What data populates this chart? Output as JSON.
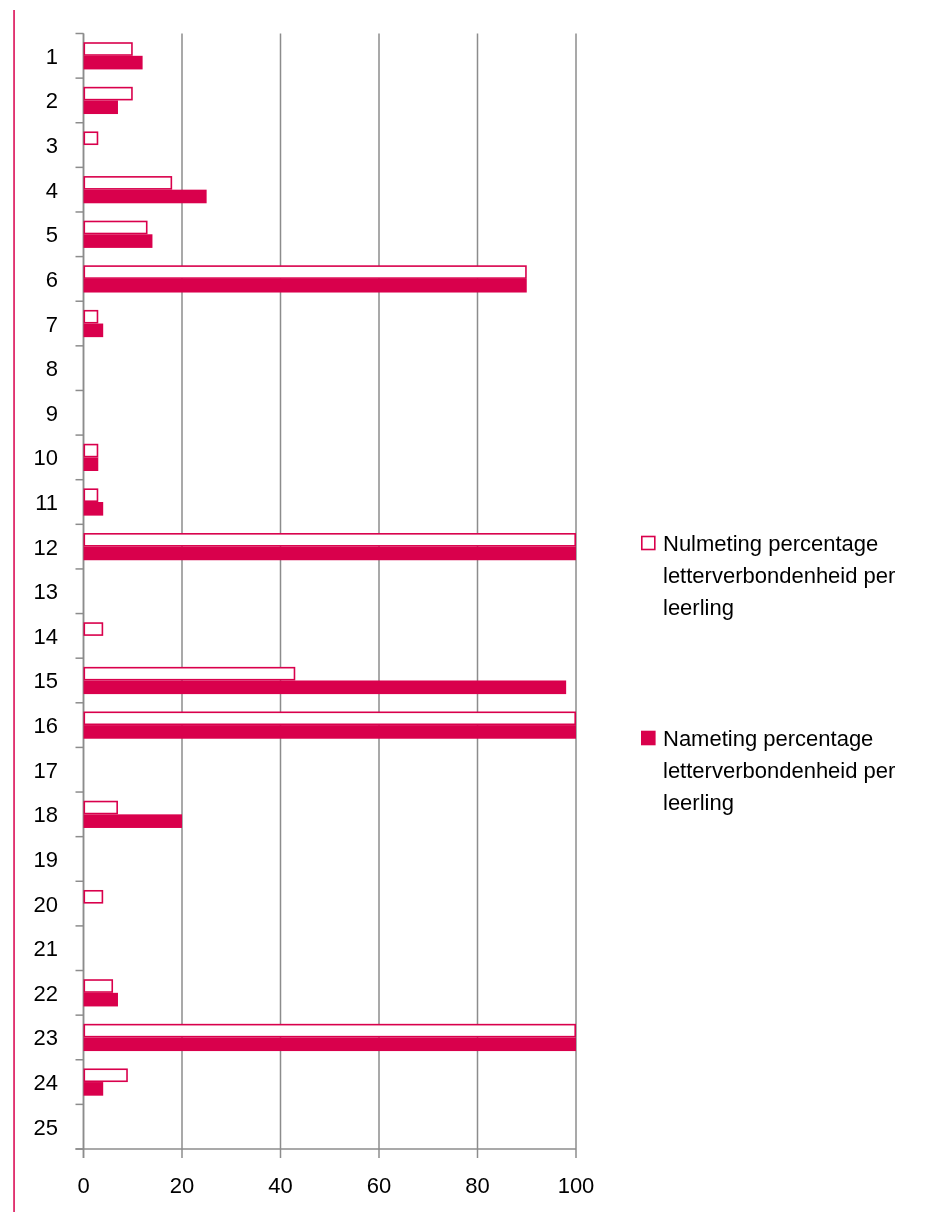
{
  "chart_data": {
    "type": "bar",
    "orientation": "horizontal",
    "categories": [
      "1",
      "2",
      "3",
      "4",
      "5",
      "6",
      "7",
      "8",
      "9",
      "10",
      "11",
      "12",
      "13",
      "14",
      "15",
      "16",
      "17",
      "18",
      "19",
      "20",
      "21",
      "22",
      "23",
      "24",
      "25"
    ],
    "series": [
      {
        "name": "Nulmeting percentage letterverbondenheid per leerling",
        "color": "#d9004c",
        "values": [
          10,
          10,
          3,
          18,
          13,
          90,
          3,
          null,
          null,
          3,
          3,
          100,
          null,
          4,
          43,
          100,
          null,
          7,
          null,
          4,
          null,
          6,
          100,
          9,
          null
        ]
      },
      {
        "name": "Nameting percentage letterverbondenheid per leerling",
        "color": "#d9004c",
        "values": [
          12,
          7,
          null,
          25,
          14,
          90,
          4,
          null,
          null,
          3,
          4,
          100,
          null,
          null,
          98,
          100,
          null,
          20,
          null,
          null,
          null,
          7,
          100,
          4,
          null
        ]
      }
    ],
    "xlim": [
      0,
      100
    ],
    "xticks": [
      0,
      20,
      40,
      60,
      80,
      100
    ],
    "grid": "x",
    "legend": "right"
  }
}
